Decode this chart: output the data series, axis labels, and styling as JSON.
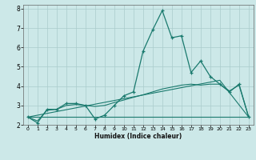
{
  "title": "",
  "xlabel": "Humidex (Indice chaleur)",
  "bg_color": "#cce8e8",
  "grid_color": "#aacccc",
  "line_color": "#1a7a6e",
  "xlim": [
    -0.5,
    23.5
  ],
  "ylim": [
    2,
    8.2
  ],
  "yticks": [
    2,
    3,
    4,
    5,
    6,
    7,
    8
  ],
  "xticks": [
    0,
    1,
    2,
    3,
    4,
    5,
    6,
    7,
    8,
    9,
    10,
    11,
    12,
    13,
    14,
    15,
    16,
    17,
    18,
    19,
    20,
    21,
    22,
    23
  ],
  "line1_x": [
    0,
    1,
    2,
    3,
    4,
    5,
    6,
    7,
    8,
    9,
    10,
    11,
    12,
    13,
    14,
    15,
    16,
    17,
    18,
    19,
    20,
    21,
    22,
    23
  ],
  "line1_y": [
    2.4,
    2.1,
    2.8,
    2.8,
    3.1,
    3.1,
    3.0,
    2.3,
    2.5,
    3.0,
    3.5,
    3.7,
    5.8,
    6.9,
    7.9,
    6.5,
    6.6,
    4.7,
    5.3,
    4.5,
    4.1,
    3.7,
    4.1,
    2.4
  ],
  "line2_x": [
    0,
    1,
    2,
    3,
    4,
    5,
    6,
    7,
    8,
    9,
    10,
    11,
    12,
    13,
    14,
    15,
    16,
    17,
    18,
    19,
    20,
    21,
    22,
    23
  ],
  "line2_y": [
    2.4,
    2.2,
    2.75,
    2.8,
    3.0,
    3.05,
    3.0,
    2.95,
    3.0,
    3.15,
    3.28,
    3.42,
    3.55,
    3.7,
    3.85,
    3.95,
    4.05,
    4.1,
    4.05,
    4.1,
    4.1,
    3.75,
    4.05,
    2.4
  ],
  "line3_x": [
    0,
    23
  ],
  "line3_y": [
    2.4,
    2.4
  ],
  "line4_x": [
    0,
    20,
    23
  ],
  "line4_y": [
    2.4,
    4.3,
    2.4
  ]
}
